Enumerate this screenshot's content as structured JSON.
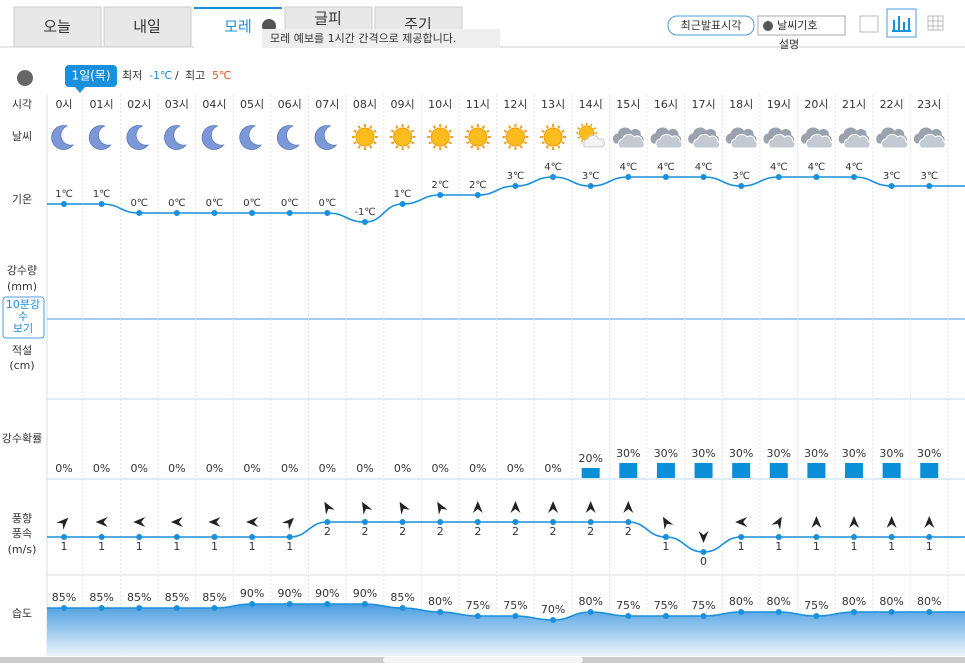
{
  "tabs": [
    "오늘",
    "내일",
    "모레",
    "글피",
    "주기"
  ],
  "tooltip": "모레 예보를 1시간 간격으로 제공합니다.",
  "buttons": {
    "latest": "최근발표시각",
    "symbol": "날씨기호",
    "description": "설명"
  },
  "date_badge": "1일(목)",
  "min_label": "최저",
  "min_value": "-1℃",
  "separator": "/",
  "max_label": "최고",
  "max_value": "5℃",
  "row_labels": {
    "time": "시각",
    "weather": "날씨",
    "temperature": "기온",
    "precipitation": "강수량",
    "precipitation_unit": "(mm)",
    "ten_min_button": [
      "10분강",
      "수",
      "보기"
    ],
    "snow": "적설",
    "snow_unit": "(cm)",
    "precip_probability": "강수확률",
    "wind_direction": "풍향",
    "wind_speed": "풍속",
    "wind_unit": "(m/s)",
    "humidity": "습도"
  },
  "hours": [
    "0시",
    "01시",
    "02시",
    "03시",
    "04시",
    "05시",
    "06시",
    "07시",
    "08시",
    "09시",
    "10시",
    "11시",
    "12시",
    "13시",
    "14시",
    "15시",
    "16시",
    "17시",
    "18시",
    "19시",
    "20시",
    "21시",
    "22시",
    "23시"
  ],
  "weather_icons": [
    "moon",
    "moon",
    "moon",
    "moon",
    "moon",
    "moon",
    "moon",
    "moon",
    "sun",
    "sun",
    "sun",
    "sun",
    "sun",
    "sun",
    "sun-cloud",
    "cloud",
    "cloud",
    "cloud",
    "cloud",
    "cloud",
    "cloud",
    "cloud",
    "cloud",
    "cloud"
  ],
  "temperature": {
    "values": [
      1,
      1,
      0,
      0,
      0,
      0,
      0,
      0,
      -1,
      1,
      2,
      2,
      3,
      4,
      3,
      4,
      4,
      4,
      3,
      4,
      4,
      4,
      3,
      3
    ],
    "value_labels": [
      "1℃",
      "1℃",
      "0℃",
      "0℃",
      "0℃",
      "0℃",
      "0℃",
      "0℃",
      "-1℃",
      "1℃",
      "2℃",
      "2℃",
      "3℃",
      "4℃",
      "3℃",
      "4℃",
      "4℃",
      "4℃",
      "3℃",
      "4℃",
      "4℃",
      "4℃",
      "3℃",
      "3℃"
    ]
  },
  "precip_probability": {
    "values": [
      0,
      0,
      0,
      0,
      0,
      0,
      0,
      0,
      0,
      0,
      0,
      0,
      0,
      0,
      20,
      30,
      30,
      30,
      30,
      30,
      30,
      30,
      30,
      30
    ],
    "value_labels": [
      "0%",
      "0%",
      "0%",
      "0%",
      "0%",
      "0%",
      "0%",
      "0%",
      "0%",
      "0%",
      "0%",
      "0%",
      "0%",
      "0%",
      "20%",
      "30%",
      "30%",
      "30%",
      "30%",
      "30%",
      "30%",
      "30%",
      "30%",
      "30%"
    ]
  },
  "wind": {
    "direction_deg": [
      45,
      -90,
      -90,
      -90,
      -90,
      -90,
      45,
      -30,
      -30,
      -30,
      -30,
      0,
      0,
      0,
      0,
      0,
      -30,
      180,
      -90,
      30,
      0,
      0,
      0,
      0
    ],
    "speed": [
      1,
      1,
      1,
      1,
      1,
      1,
      1,
      2,
      2,
      2,
      2,
      2,
      2,
      2,
      2,
      2,
      1,
      0,
      1,
      1,
      1,
      1,
      1,
      1
    ]
  },
  "humidity": {
    "values": [
      85,
      85,
      85,
      85,
      85,
      90,
      90,
      90,
      90,
      85,
      80,
      75,
      75,
      70,
      80,
      75,
      75,
      75,
      80,
      80,
      75,
      80,
      80,
      80
    ],
    "value_labels": [
      "85%",
      "85%",
      "85%",
      "85%",
      "85%",
      "90%",
      "90%",
      "90%",
      "90%",
      "85%",
      "80%",
      "75%",
      "75%",
      "70%",
      "80%",
      "75%",
      "75%",
      "75%",
      "80%",
      "80%",
      "75%",
      "80%",
      "80%",
      "80%"
    ]
  }
}
